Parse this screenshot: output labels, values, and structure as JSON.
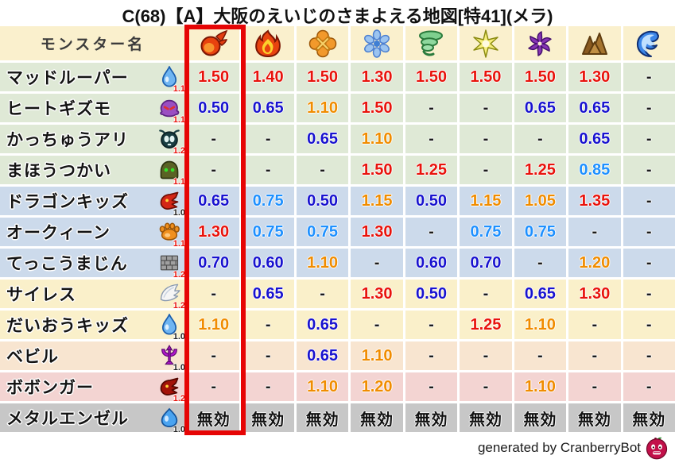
{
  "title": "C(68)【A】大阪のえいじのさまよえる地図[特41](メラ)",
  "header": {
    "monster_col": "モンスター名",
    "elements": [
      {
        "icon": "mera-fireball-icon"
      },
      {
        "icon": "gira-flame-icon"
      },
      {
        "icon": "io-explosion-icon"
      },
      {
        "icon": "hyado-snowflake-icon"
      },
      {
        "icon": "bagi-tornado-icon"
      },
      {
        "icon": "dein-spark-icon"
      },
      {
        "icon": "dolma-pinwheel-icon"
      },
      {
        "icon": "earth-rocks-icon"
      },
      {
        "icon": "water-wave-icon"
      }
    ]
  },
  "highlight": {
    "highlighted_column": 1,
    "box_color": "#e60505"
  },
  "palette": {
    "weak_strong": "#e8130c",
    "weak_mild": "#f08c00",
    "resist_mild": "#1e90ff",
    "resist_strong": "#1812cf",
    "neutral_dash": "#1a1a1a"
  },
  "rows": [
    {
      "name": "マッドルーパー",
      "icon": "water-drop-icon",
      "modifier": "1.1",
      "modifier_color": "red",
      "group": "green",
      "values": [
        {
          "v": "1.50",
          "c": "red"
        },
        {
          "v": "1.40",
          "c": "red"
        },
        {
          "v": "1.50",
          "c": "red"
        },
        {
          "v": "1.30",
          "c": "red"
        },
        {
          "v": "1.50",
          "c": "red"
        },
        {
          "v": "1.50",
          "c": "red"
        },
        {
          "v": "1.50",
          "c": "red"
        },
        {
          "v": "1.30",
          "c": "red"
        },
        {
          "v": "-",
          "c": "dash"
        }
      ]
    },
    {
      "name": "ヒートギズモ",
      "icon": "purple-ghost-icon",
      "modifier": "1.1",
      "modifier_color": "red",
      "group": "green",
      "values": [
        {
          "v": "0.50",
          "c": "blue"
        },
        {
          "v": "0.65",
          "c": "blue"
        },
        {
          "v": "1.10",
          "c": "orange"
        },
        {
          "v": "1.50",
          "c": "red"
        },
        {
          "v": "-",
          "c": "dash"
        },
        {
          "v": "-",
          "c": "dash"
        },
        {
          "v": "0.65",
          "c": "blue"
        },
        {
          "v": "0.65",
          "c": "blue"
        },
        {
          "v": "-",
          "c": "dash"
        }
      ]
    },
    {
      "name": "かっちゅうアリ",
      "icon": "ant-icon",
      "modifier": "1.2",
      "modifier_color": "red",
      "group": "green",
      "values": [
        {
          "v": "-",
          "c": "dash"
        },
        {
          "v": "-",
          "c": "dash"
        },
        {
          "v": "0.65",
          "c": "blue"
        },
        {
          "v": "1.10",
          "c": "orange"
        },
        {
          "v": "-",
          "c": "dash"
        },
        {
          "v": "-",
          "c": "dash"
        },
        {
          "v": "-",
          "c": "dash"
        },
        {
          "v": "0.65",
          "c": "blue"
        },
        {
          "v": "-",
          "c": "dash"
        }
      ]
    },
    {
      "name": "まほうつかい",
      "icon": "hooded-mage-icon",
      "modifier": "1.1",
      "modifier_color": "red",
      "group": "green",
      "values": [
        {
          "v": "-",
          "c": "dash"
        },
        {
          "v": "-",
          "c": "dash"
        },
        {
          "v": "-",
          "c": "dash"
        },
        {
          "v": "1.50",
          "c": "red"
        },
        {
          "v": "1.25",
          "c": "red"
        },
        {
          "v": "-",
          "c": "dash"
        },
        {
          "v": "1.25",
          "c": "red"
        },
        {
          "v": "0.85",
          "c": "lightblue"
        },
        {
          "v": "-",
          "c": "dash"
        }
      ]
    },
    {
      "name": "ドラゴンキッズ",
      "icon": "red-dragon-icon",
      "modifier": "1.0",
      "modifier_color": "black",
      "group": "blue",
      "values": [
        {
          "v": "0.65",
          "c": "blue"
        },
        {
          "v": "0.75",
          "c": "lightblue"
        },
        {
          "v": "0.50",
          "c": "blue"
        },
        {
          "v": "1.15",
          "c": "orange"
        },
        {
          "v": "0.50",
          "c": "blue"
        },
        {
          "v": "1.15",
          "c": "orange"
        },
        {
          "v": "1.05",
          "c": "orange"
        },
        {
          "v": "1.35",
          "c": "red"
        },
        {
          "v": "-",
          "c": "dash"
        }
      ]
    },
    {
      "name": "オークィーン",
      "icon": "paw-icon",
      "modifier": "1.1",
      "modifier_color": "red",
      "group": "blue",
      "values": [
        {
          "v": "1.30",
          "c": "red"
        },
        {
          "v": "0.75",
          "c": "lightblue"
        },
        {
          "v": "0.75",
          "c": "lightblue"
        },
        {
          "v": "1.30",
          "c": "red"
        },
        {
          "v": "-",
          "c": "dash"
        },
        {
          "v": "0.75",
          "c": "lightblue"
        },
        {
          "v": "0.75",
          "c": "lightblue"
        },
        {
          "v": "-",
          "c": "dash"
        },
        {
          "v": "-",
          "c": "dash"
        }
      ]
    },
    {
      "name": "てっこうまじん",
      "icon": "brick-wall-icon",
      "modifier": "1.2",
      "modifier_color": "red",
      "group": "blue",
      "values": [
        {
          "v": "0.70",
          "c": "blue"
        },
        {
          "v": "0.60",
          "c": "blue"
        },
        {
          "v": "1.10",
          "c": "orange"
        },
        {
          "v": "-",
          "c": "dash"
        },
        {
          "v": "0.60",
          "c": "blue"
        },
        {
          "v": "0.70",
          "c": "blue"
        },
        {
          "v": "-",
          "c": "dash"
        },
        {
          "v": "1.20",
          "c": "orange"
        },
        {
          "v": "-",
          "c": "dash"
        }
      ]
    },
    {
      "name": "サイレス",
      "icon": "wing-icon",
      "modifier": "1.2",
      "modifier_color": "red",
      "group": "cream",
      "values": [
        {
          "v": "-",
          "c": "dash"
        },
        {
          "v": "0.65",
          "c": "blue"
        },
        {
          "v": "-",
          "c": "dash"
        },
        {
          "v": "1.30",
          "c": "red"
        },
        {
          "v": "0.50",
          "c": "blue"
        },
        {
          "v": "-",
          "c": "dash"
        },
        {
          "v": "0.65",
          "c": "blue"
        },
        {
          "v": "1.30",
          "c": "red"
        },
        {
          "v": "-",
          "c": "dash"
        }
      ]
    },
    {
      "name": "だいおうキッズ",
      "icon": "water-drop-icon",
      "modifier": "1.0",
      "modifier_color": "black",
      "group": "cream",
      "values": [
        {
          "v": "1.10",
          "c": "orange"
        },
        {
          "v": "-",
          "c": "dash"
        },
        {
          "v": "0.65",
          "c": "blue"
        },
        {
          "v": "-",
          "c": "dash"
        },
        {
          "v": "-",
          "c": "dash"
        },
        {
          "v": "1.25",
          "c": "red"
        },
        {
          "v": "1.10",
          "c": "orange"
        },
        {
          "v": "-",
          "c": "dash"
        },
        {
          "v": "-",
          "c": "dash"
        }
      ]
    },
    {
      "name": "ベビル",
      "icon": "trident-icon",
      "modifier": "1.0",
      "modifier_color": "black",
      "group": "peach",
      "values": [
        {
          "v": "-",
          "c": "dash"
        },
        {
          "v": "-",
          "c": "dash"
        },
        {
          "v": "0.65",
          "c": "blue"
        },
        {
          "v": "1.10",
          "c": "orange"
        },
        {
          "v": "-",
          "c": "dash"
        },
        {
          "v": "-",
          "c": "dash"
        },
        {
          "v": "-",
          "c": "dash"
        },
        {
          "v": "-",
          "c": "dash"
        },
        {
          "v": "-",
          "c": "dash"
        }
      ]
    },
    {
      "name": "ボボンガー",
      "icon": "dark-dragon-icon",
      "modifier": "1.2",
      "modifier_color": "red",
      "group": "pink",
      "values": [
        {
          "v": "-",
          "c": "dash"
        },
        {
          "v": "-",
          "c": "dash"
        },
        {
          "v": "1.10",
          "c": "orange"
        },
        {
          "v": "1.20",
          "c": "orange"
        },
        {
          "v": "-",
          "c": "dash"
        },
        {
          "v": "-",
          "c": "dash"
        },
        {
          "v": "1.10",
          "c": "orange"
        },
        {
          "v": "-",
          "c": "dash"
        },
        {
          "v": "-",
          "c": "dash"
        }
      ]
    },
    {
      "name": "メタルエンゼル",
      "icon": "slime-icon",
      "modifier": "1.0",
      "modifier_color": "black",
      "group": "gray",
      "values": [
        {
          "v": "無効",
          "c": "noeffect"
        },
        {
          "v": "無効",
          "c": "noeffect"
        },
        {
          "v": "無効",
          "c": "noeffect"
        },
        {
          "v": "無効",
          "c": "noeffect"
        },
        {
          "v": "無効",
          "c": "noeffect"
        },
        {
          "v": "無効",
          "c": "noeffect"
        },
        {
          "v": "無効",
          "c": "noeffect"
        },
        {
          "v": "無効",
          "c": "noeffect"
        },
        {
          "v": "無効",
          "c": "noeffect"
        }
      ]
    }
  ],
  "footer": {
    "credit": "generated by CranberryBot",
    "bot_icon": "cranberrybot-icon"
  }
}
